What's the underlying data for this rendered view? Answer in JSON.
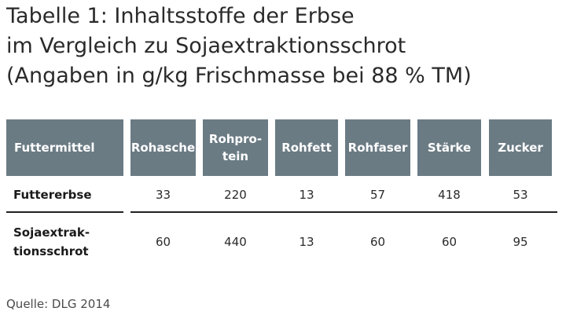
{
  "title": {
    "line1": "Tabelle 1: Inhaltsstoffe der Erbse",
    "line2": "im Vergleich zu Sojaextraktionsschrot",
    "line3": "(Angaben in g/kg Frischmasse bei 88 % TM)"
  },
  "table": {
    "headers": {
      "futtermittel": "Futtermittel",
      "rohasche": "Rohasche",
      "rohprotein_line1": "Rohpro-",
      "rohprotein_line2": "tein",
      "rohfett": "Rohfett",
      "rohfaser": "Rohfaser",
      "staerke": "Stärke",
      "zucker": "Zucker"
    },
    "rows": [
      {
        "label_line1": "Futtererbse",
        "values": [
          "33",
          "220",
          "13",
          "57",
          "418",
          "53"
        ]
      },
      {
        "label_line1": "Sojaextrak-",
        "label_line2": "tionsschrot",
        "values": [
          "60",
          "440",
          "13",
          "60",
          "60",
          "95"
        ]
      }
    ]
  },
  "source": "Quelle: DLG 2014"
}
